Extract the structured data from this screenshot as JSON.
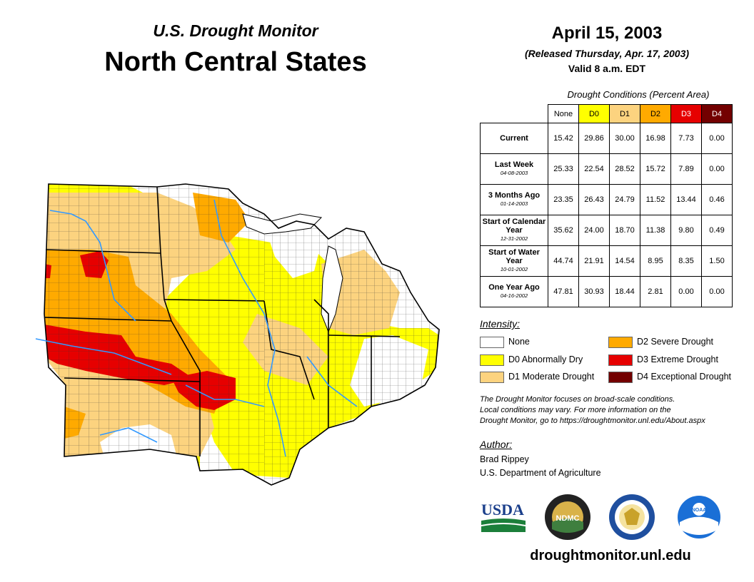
{
  "header": {
    "monitor_title": "U.S. Drought Monitor",
    "region_title": "North Central States",
    "date": "April 15, 2003",
    "released": "(Released Thursday, Apr. 17, 2003)",
    "valid": "Valid 8 a.m. EDT"
  },
  "table": {
    "caption": "Drought Conditions (Percent Area)",
    "columns": [
      {
        "label": "None",
        "color": "#ffffff",
        "text_color": "#000000"
      },
      {
        "label": "D0",
        "color": "#ffff00",
        "text_color": "#000000"
      },
      {
        "label": "D1",
        "color": "#fcd37f",
        "text_color": "#000000"
      },
      {
        "label": "D2",
        "color": "#ffaa00",
        "text_color": "#000000"
      },
      {
        "label": "D3",
        "color": "#e60000",
        "text_color": "#ffffff"
      },
      {
        "label": "D4",
        "color": "#730000",
        "text_color": "#ffffff"
      }
    ],
    "rows": [
      {
        "label": "Current",
        "sublabel": "",
        "values": [
          "15.42",
          "29.86",
          "30.00",
          "16.98",
          "7.73",
          "0.00"
        ]
      },
      {
        "label": "Last Week",
        "sublabel": "04-08-2003",
        "values": [
          "25.33",
          "22.54",
          "28.52",
          "15.72",
          "7.89",
          "0.00"
        ]
      },
      {
        "label": "3 Months Ago",
        "sublabel": "01-14-2003",
        "values": [
          "23.35",
          "26.43",
          "24.79",
          "11.52",
          "13.44",
          "0.46"
        ]
      },
      {
        "label": "Start of Calendar Year",
        "sublabel": "12-31-2002",
        "values": [
          "35.62",
          "24.00",
          "18.70",
          "11.38",
          "9.80",
          "0.49"
        ]
      },
      {
        "label": "Start of Water Year",
        "sublabel": "10-01-2002",
        "values": [
          "44.74",
          "21.91",
          "14.54",
          "8.95",
          "8.35",
          "1.50"
        ]
      },
      {
        "label": "One Year Ago",
        "sublabel": "04-16-2002",
        "values": [
          "47.81",
          "30.93",
          "18.44",
          "2.81",
          "0.00",
          "0.00"
        ]
      }
    ]
  },
  "legend": {
    "title": "Intensity:",
    "items": [
      {
        "label": "None",
        "color": "#ffffff"
      },
      {
        "label": "D0 Abnormally Dry",
        "color": "#ffff00"
      },
      {
        "label": "D1 Moderate Drought",
        "color": "#fcd37f"
      },
      {
        "label": "D2 Severe Drought",
        "color": "#ffaa00"
      },
      {
        "label": "D3 Extreme Drought",
        "color": "#e60000"
      },
      {
        "label": "D4 Exceptional Drought",
        "color": "#730000"
      }
    ]
  },
  "note": {
    "line1": "The Drought Monitor focuses on broad-scale conditions.",
    "line2": "Local conditions may vary. For more information on the",
    "line3": "Drought Monitor, go to https://droughtmonitor.unl.edu/About.aspx"
  },
  "author": {
    "title": "Author:",
    "name": "Brad Rippey",
    "org": "U.S. Department of Agriculture"
  },
  "logos": {
    "usda": "USDA",
    "ndmc": "NDMC",
    "noaa": "NOAA"
  },
  "website": "droughtmonitor.unl.edu"
}
